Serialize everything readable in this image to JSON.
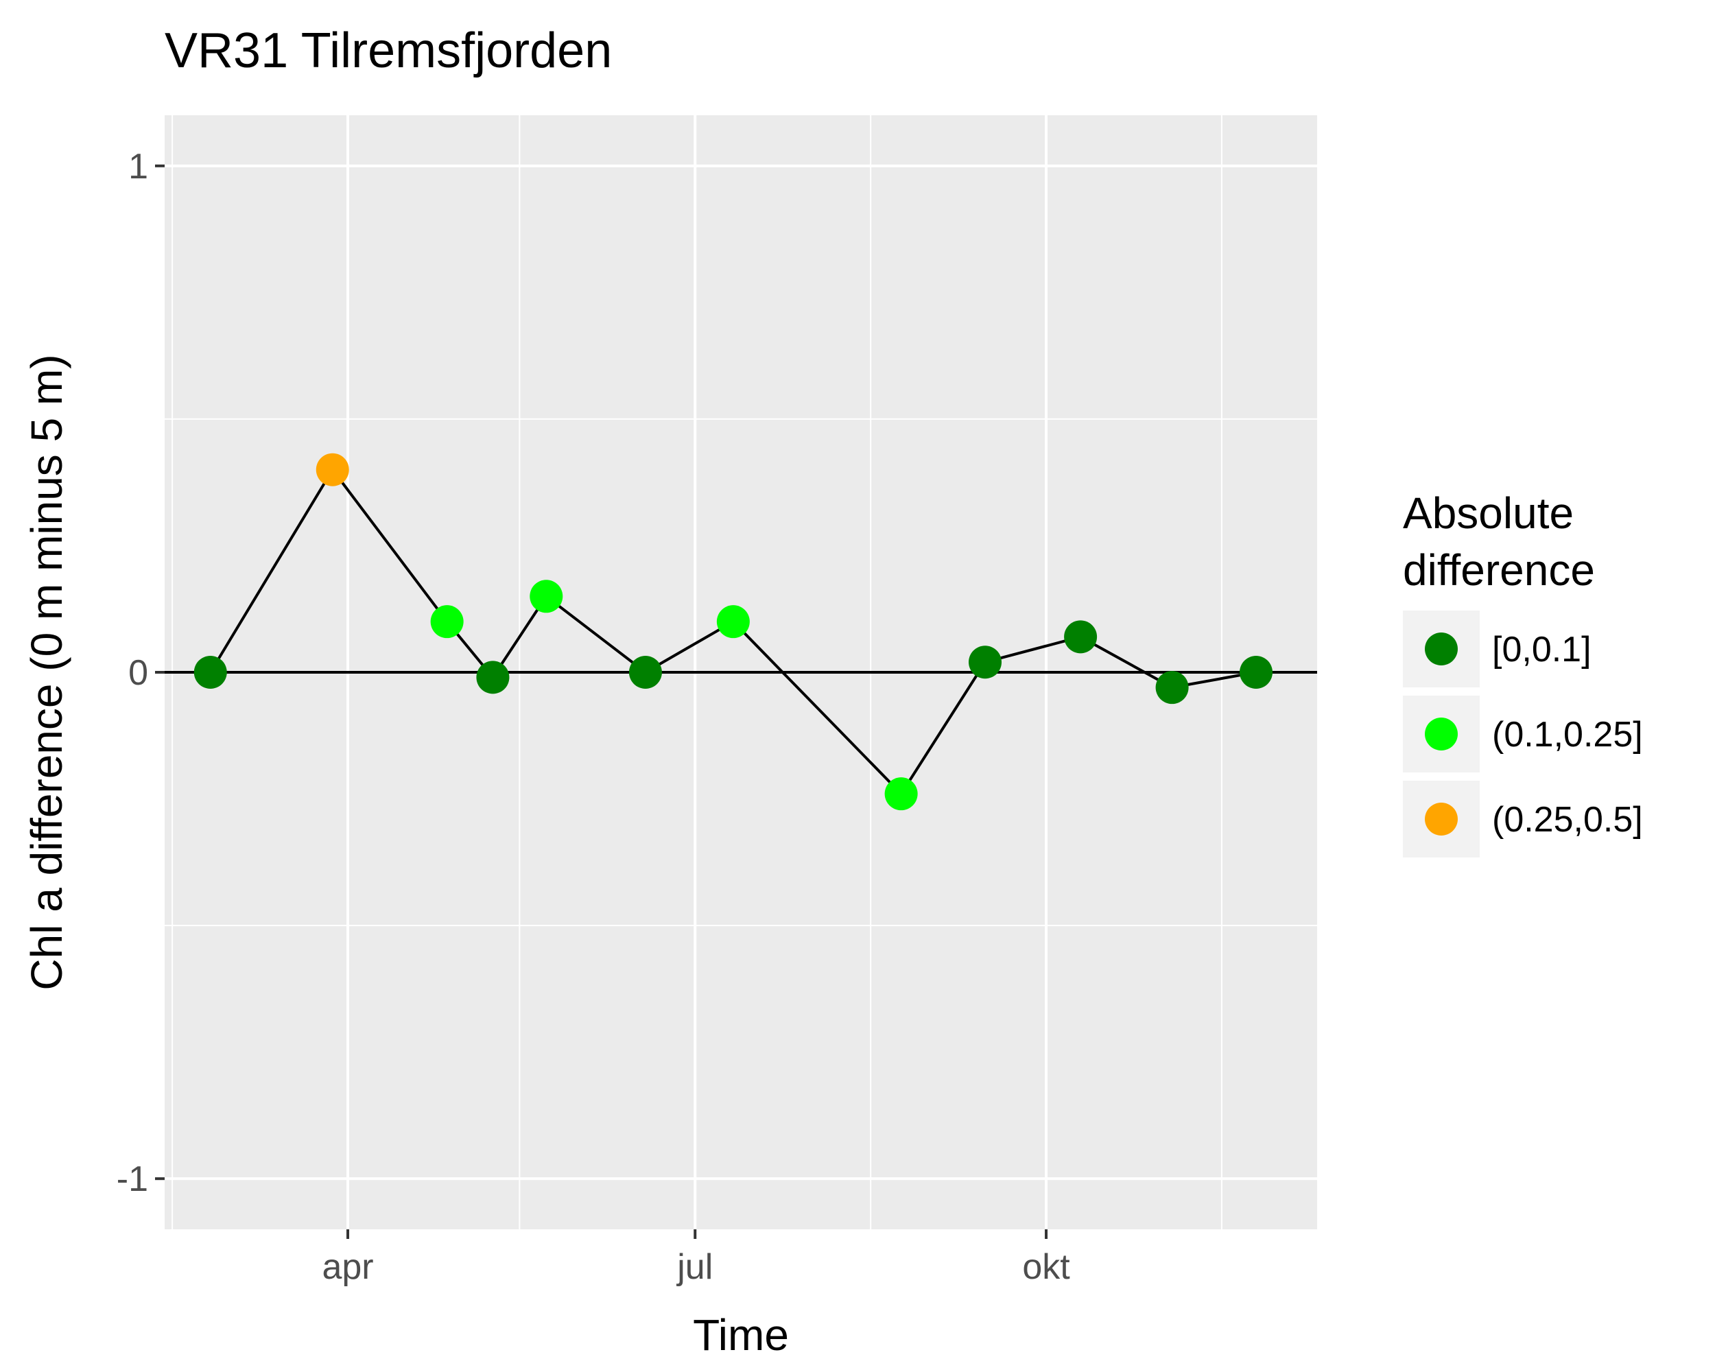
{
  "chart_data": {
    "type": "line",
    "title": "VR31 Tilremsfjorden",
    "xlabel": "Time",
    "ylabel": "Chl a difference (0 m minus 5 m)",
    "x_ticks": [
      {
        "label": "apr",
        "date": "2020-04-01"
      },
      {
        "label": "jul",
        "date": "2020-07-01"
      },
      {
        "label": "okt",
        "date": "2020-10-01"
      }
    ],
    "x_minor_ticks": [
      "2020-02-15",
      "2020-05-16",
      "2020-08-16",
      "2020-11-16"
    ],
    "xlim": [
      "2020-02-13",
      "2020-12-11"
    ],
    "y_ticks": [
      -1,
      0,
      1
    ],
    "y_minor_ticks": [
      -0.5,
      0.5
    ],
    "ylim": [
      -1.1,
      1.1
    ],
    "grid": true,
    "zero_line": 0,
    "line_color": "#000000",
    "panel_background": "#ebebeb",
    "legend": {
      "title_lines": [
        "Absolute",
        "difference"
      ],
      "position": "right",
      "entries": [
        {
          "label": "[0,0.1]",
          "color": "#008000"
        },
        {
          "label": "(0.1,0.25]",
          "color": "#00ff00"
        },
        {
          "label": "(0.25,0.5]",
          "color": "#ffa500"
        }
      ]
    },
    "series": [
      {
        "points": [
          {
            "date": "2020-02-25",
            "y": 0.0,
            "class": 0
          },
          {
            "date": "2020-03-28",
            "y": 0.4,
            "class": 2
          },
          {
            "date": "2020-04-27",
            "y": 0.1,
            "class": 1
          },
          {
            "date": "2020-05-09",
            "y": -0.01,
            "class": 0
          },
          {
            "date": "2020-05-23",
            "y": 0.15,
            "class": 1
          },
          {
            "date": "2020-06-18",
            "y": 0.0,
            "class": 0
          },
          {
            "date": "2020-07-11",
            "y": 0.1,
            "class": 1
          },
          {
            "date": "2020-08-24",
            "y": -0.24,
            "class": 1
          },
          {
            "date": "2020-09-15",
            "y": 0.02,
            "class": 0
          },
          {
            "date": "2020-10-10",
            "y": 0.07,
            "class": 0
          },
          {
            "date": "2020-11-03",
            "y": -0.03,
            "class": 0
          },
          {
            "date": "2020-11-25",
            "y": 0.0,
            "class": 0
          }
        ]
      }
    ]
  }
}
